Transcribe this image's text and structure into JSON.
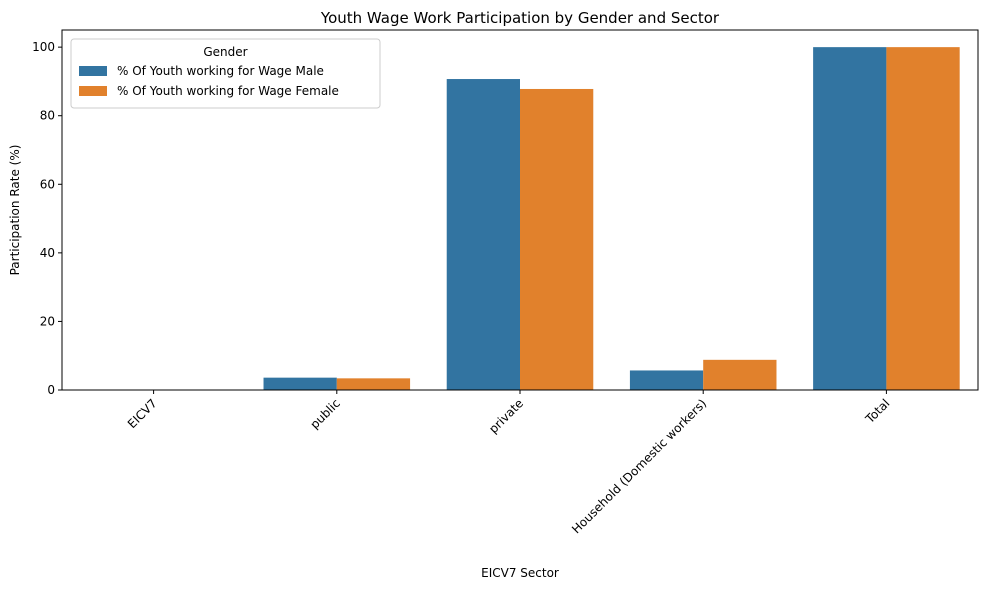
{
  "chart_data": {
    "type": "bar",
    "title": "Youth Wage Work Participation by Gender and Sector",
    "xlabel": "EICV7 Sector",
    "ylabel": "Participation Rate (%)",
    "categories": [
      "EICV7",
      "public",
      "private",
      "Household (Domestic workers)",
      "Total"
    ],
    "series": [
      {
        "name": "% Of Youth working for Wage Male",
        "color": "#3274a1",
        "values": [
          0,
          3.6,
          90.7,
          5.7,
          100
        ]
      },
      {
        "name": "% Of Youth working for Wage Female",
        "color": "#e1812c",
        "values": [
          0,
          3.4,
          87.8,
          8.8,
          100
        ]
      }
    ],
    "ylim": [
      0,
      105
    ],
    "yticks": [
      0,
      20,
      40,
      60,
      80,
      100
    ],
    "grid": false,
    "legend": {
      "title": "Gender",
      "placement": "top-left"
    }
  }
}
